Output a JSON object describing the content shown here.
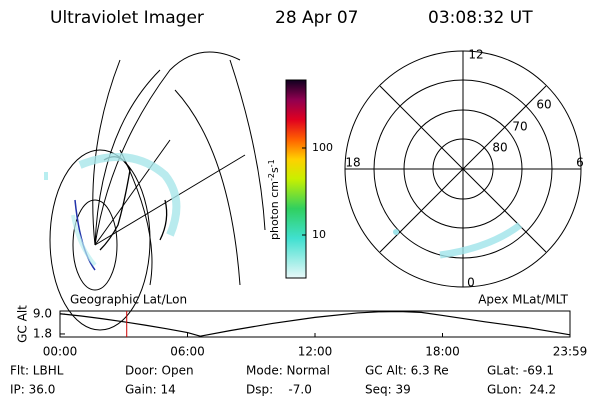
{
  "header": {
    "title": "Ultraviolet Imager",
    "date": "28 Apr 07",
    "time": "03:08:32 UT"
  },
  "colorbar": {
    "label": "photon cm",
    "label_exp1": "-2",
    "label_mid": "s",
    "label_exp2": "-1",
    "ticks": [
      "100",
      "10"
    ]
  },
  "polar": {
    "labels": [
      "12",
      "6",
      "18",
      "0",
      "60",
      "70",
      "80"
    ]
  },
  "map_labels": {
    "left": "Geographic Lat/Lon",
    "right": "Apex MLat/MLT"
  },
  "chart_data": {
    "type": "line",
    "y_label": "GC Alt",
    "color": "#000000",
    "marker_color": "#cc0000",
    "x": [
      0,
      1,
      2,
      3,
      4,
      5,
      6,
      6.6,
      8,
      10,
      12,
      14,
      15,
      16,
      17,
      18,
      20,
      22,
      24
    ],
    "values": [
      9.1,
      8.3,
      7.3,
      6.2,
      5.0,
      3.7,
      2.3,
      1.0,
      3.0,
      5.6,
      7.8,
      9.4,
      9.8,
      9.9,
      9.6,
      8.5,
      6.2,
      4.1,
      1.5
    ],
    "marker_x": 3.14,
    "xlim": [
      0,
      24
    ],
    "ylim": [
      0.7,
      10.1
    ],
    "xticks": [
      {
        "value": 0,
        "label": "00:00"
      },
      {
        "value": 6,
        "label": "06:00"
      },
      {
        "value": 12,
        "label": "12:00"
      },
      {
        "value": 18,
        "label": "18:00"
      },
      {
        "value": 24,
        "label": "23:59"
      }
    ],
    "yticks": [
      {
        "value": 9,
        "label": "9.0"
      },
      {
        "value": 1.8,
        "label": "1.8"
      }
    ]
  },
  "footer": {
    "rows": [
      [
        "Flt: LBHL",
        "Door: Open",
        "Mode: Normal",
        "GC Alt: 6.3 Re",
        "GLat: -69.1"
      ],
      [
        "IP: 36.0",
        "Gain: 14",
        "Dsp:    -7.0",
        "Seq: 39",
        "GLon:  24.2"
      ]
    ]
  }
}
